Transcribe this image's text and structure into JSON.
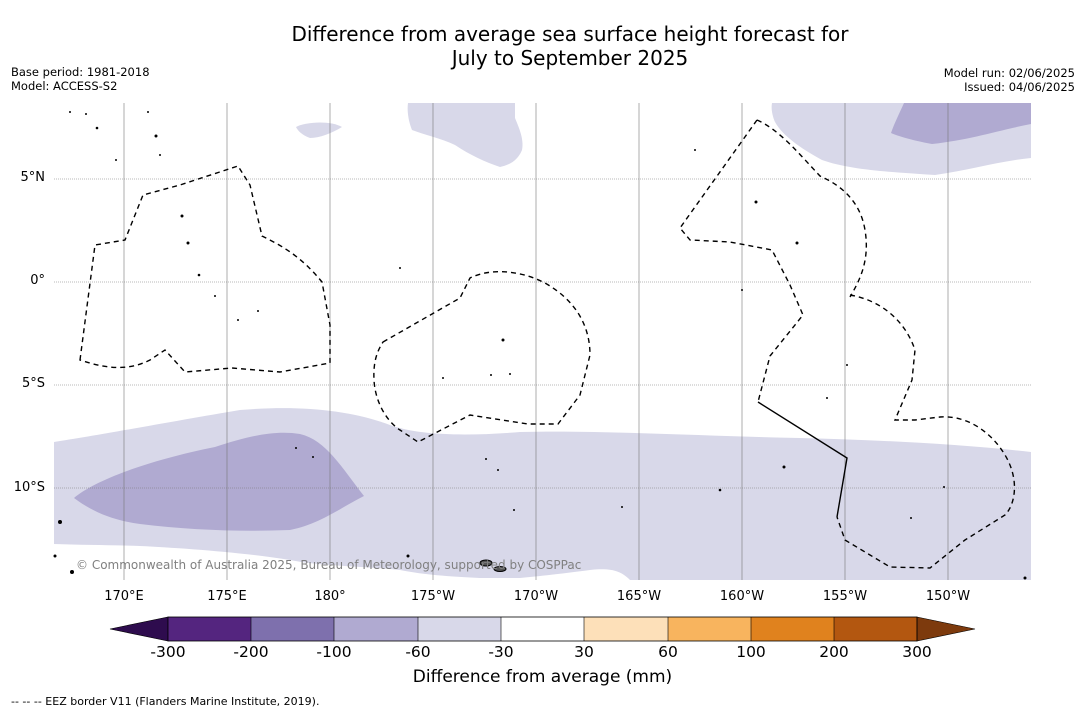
{
  "title_line1": "Difference from average sea surface height forecast for",
  "title_line2": "July to September 2025",
  "base_period": "Base period: 1981-2018",
  "model": "Model: ACCESS-S2",
  "model_run": "Model run: 02/06/2025",
  "issued": "Issued: 04/06/2025",
  "lat_labels": [
    "5°N",
    "0°",
    "5°S",
    "10°S"
  ],
  "lon_labels": [
    "170°E",
    "175°E",
    "180°",
    "175°W",
    "170°W",
    "165°W",
    "160°W",
    "155°W",
    "150°W"
  ],
  "copyright": "© Commonwealth of Australia 2025, Bureau of Meteorology, supported by COSPPac",
  "colorbar": {
    "title": "Difference from average (mm)",
    "tick_labels": [
      "-300",
      "-200",
      "-100",
      "-60",
      "-30",
      "30",
      "60",
      "100",
      "200",
      "300"
    ],
    "colors": [
      "#2e0c4e",
      "#54257f",
      "#7e70ad",
      "#b0aad1",
      "#d8d8e9",
      "#ffffff",
      "#fde0b9",
      "#f8b45e",
      "#e0821e",
      "#b35710",
      "#7d3a0d"
    ]
  },
  "legend_colors": {
    "level1": "#d8d8e9",
    "level2": "#b0aad1"
  },
  "footnote": "--  --  -- EEZ border V11 (Flanders Marine Institute, 2019)."
}
